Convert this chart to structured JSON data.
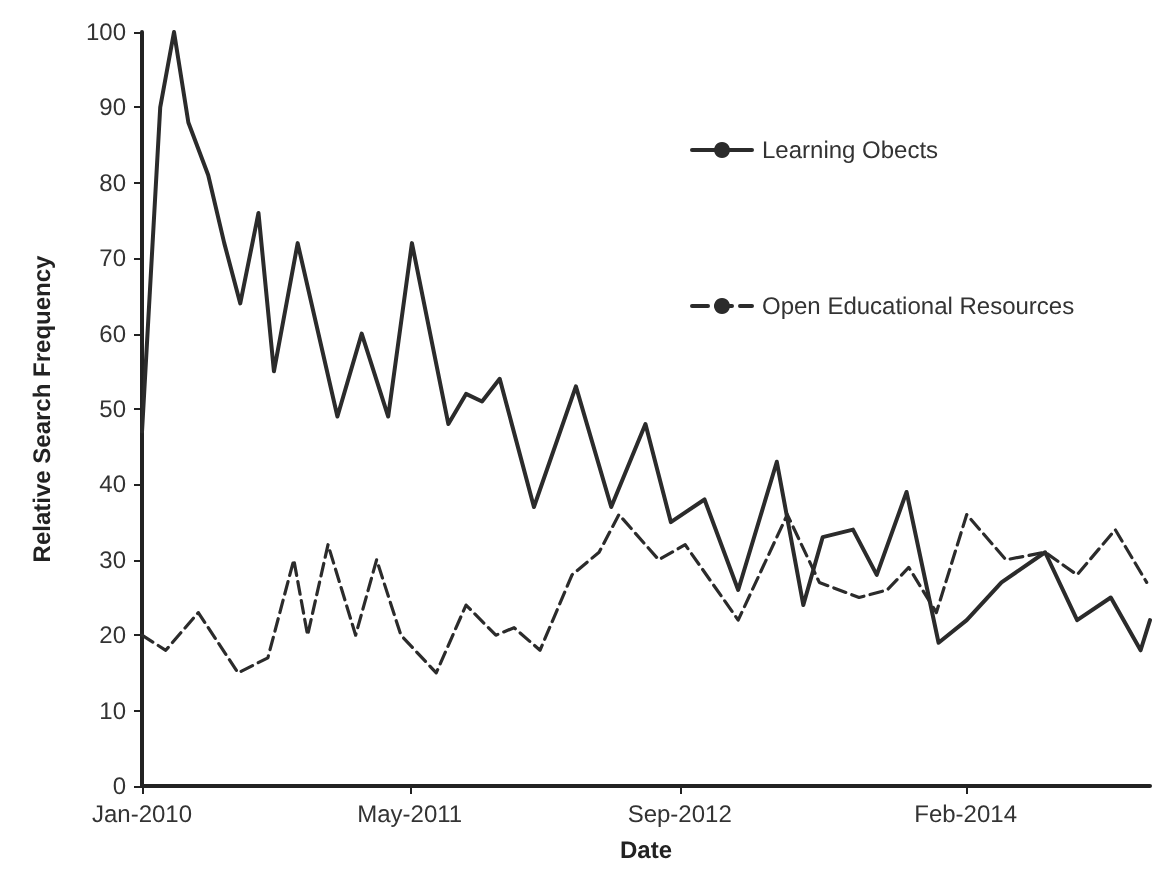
{
  "chart_data": {
    "type": "line",
    "xlabel": "Date",
    "ylabel": "Relative Search Frequency",
    "xlim": [
      "2010-01-01",
      "2015-01-01"
    ],
    "xticks": [
      {
        "value": "2010-01-01",
        "label": "Jan-2010"
      },
      {
        "value": "2011-05-01",
        "label": "May-2011"
      },
      {
        "value": "2012-09-01",
        "label": "Sep-2012"
      },
      {
        "value": "2014-02-01",
        "label": "Feb-2014"
      }
    ],
    "ylim": [
      0,
      100
    ],
    "yticks": [
      0,
      10,
      20,
      30,
      40,
      50,
      60,
      70,
      80,
      90,
      100
    ],
    "grid": false,
    "legend": "top right",
    "marker": "none",
    "series": [
      {
        "name": "Learning Obects",
        "color": "#2b2b2b",
        "line_style": "solid",
        "x": [
          "2010-01-01",
          "2010-02-03",
          "2010-02-28",
          "2010-03-26",
          "2010-05-01",
          "2010-05-30",
          "2010-06-28",
          "2010-07-31",
          "2010-08-28",
          "2010-10-10",
          "2010-12-21",
          "2011-02-03",
          "2011-03-23",
          "2011-05-05",
          "2011-07-10",
          "2011-08-11",
          "2011-09-09",
          "2011-10-11",
          "2011-12-12",
          "2012-02-26",
          "2012-04-30",
          "2012-07-01",
          "2012-08-16",
          "2012-10-16",
          "2012-12-16",
          "2013-02-24",
          "2013-04-13",
          "2013-05-18",
          "2013-07-12",
          "2013-08-24",
          "2013-10-17",
          "2013-12-14",
          "2014-02-03",
          "2014-04-07",
          "2014-06-25",
          "2014-08-22",
          "2014-10-22",
          "2014-12-15",
          "2015-01-01"
        ],
        "values": [
          47,
          90,
          100,
          88,
          81,
          72,
          64,
          76,
          55,
          72,
          49,
          60,
          49,
          72,
          48,
          52,
          51,
          54,
          37,
          53,
          37,
          48,
          35,
          38,
          26,
          43,
          24,
          33,
          34,
          28,
          39,
          19,
          22,
          27,
          31,
          22,
          25,
          18,
          22
        ]
      },
      {
        "name": "Open Educational Resources",
        "color": "#2b2b2b",
        "line_style": "dashed",
        "x": [
          "2010-01-01",
          "2010-02-13",
          "2010-04-13",
          "2010-06-24",
          "2010-08-17",
          "2010-10-03",
          "2010-10-28",
          "2010-12-04",
          "2011-01-23",
          "2011-03-02",
          "2011-04-15",
          "2011-06-18",
          "2011-08-11",
          "2011-10-04",
          "2011-11-06",
          "2011-12-23",
          "2012-02-19",
          "2012-04-08",
          "2012-05-14",
          "2012-07-25",
          "2012-09-11",
          "2012-12-16",
          "2013-03-15",
          "2013-05-12",
          "2013-07-23",
          "2013-09-12",
          "2013-10-21",
          "2013-12-10",
          "2014-02-03",
          "2014-04-15",
          "2014-06-25",
          "2014-08-22",
          "2014-10-30",
          "2014-12-26"
        ],
        "values": [
          20,
          18,
          23,
          15,
          17,
          30,
          20,
          32,
          20,
          30,
          20,
          15,
          24,
          20,
          21,
          18,
          28,
          31,
          36,
          30,
          32,
          22,
          36,
          27,
          25,
          26,
          29,
          23,
          36,
          30,
          31,
          28,
          34,
          27
        ]
      }
    ]
  }
}
